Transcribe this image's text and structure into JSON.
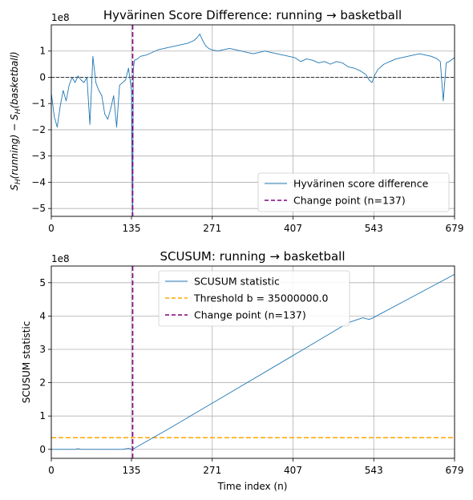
{
  "chart_data": [
    {
      "type": "line",
      "title": "Hyvärinen Score Difference: running → basketball",
      "ylabel": "S_H(running) − S_H(basketball)",
      "xlabel": "",
      "y_multiplier": "1e8",
      "xlim": [
        0,
        679
      ],
      "ylim": [
        -5.3,
        2.0
      ],
      "x_ticks": [
        "0",
        "135",
        "271",
        "407",
        "543",
        "679"
      ],
      "y_ticks": [
        "−5",
        "−4",
        "−3",
        "−2",
        "−1",
        "0",
        "1"
      ],
      "grid": true,
      "legend_position": "lower right",
      "series": [
        {
          "name": "Hyvärinen score difference",
          "color": "#1f77b4",
          "x": [
            0,
            5,
            10,
            15,
            20,
            25,
            30,
            35,
            40,
            45,
            50,
            55,
            60,
            65,
            70,
            75,
            80,
            85,
            90,
            95,
            100,
            105,
            110,
            115,
            120,
            125,
            130,
            135,
            137,
            138,
            140,
            145,
            150,
            160,
            170,
            180,
            190,
            200,
            210,
            220,
            230,
            240,
            245,
            250,
            255,
            260,
            265,
            270,
            280,
            290,
            300,
            310,
            320,
            330,
            340,
            350,
            360,
            370,
            380,
            390,
            400,
            410,
            420,
            430,
            440,
            450,
            460,
            470,
            480,
            490,
            500,
            510,
            520,
            530,
            535,
            540,
            545,
            550,
            560,
            570,
            580,
            590,
            600,
            610,
            620,
            630,
            640,
            650,
            655,
            660,
            665,
            670,
            679
          ],
          "y": [
            -0.6,
            -1.5,
            -1.9,
            -1.1,
            -0.5,
            -0.9,
            -0.3,
            0.0,
            -0.2,
            0.05,
            -0.1,
            -0.2,
            0.0,
            -1.8,
            0.8,
            -0.2,
            -0.5,
            -0.7,
            -1.4,
            -1.6,
            -1.2,
            -0.7,
            -1.9,
            -0.3,
            -0.2,
            -0.1,
            0.35,
            -0.5,
            -5.2,
            0.3,
            0.65,
            0.7,
            0.8,
            0.85,
            0.95,
            1.05,
            1.1,
            1.15,
            1.2,
            1.25,
            1.3,
            1.4,
            1.5,
            1.65,
            1.4,
            1.2,
            1.1,
            1.05,
            1.0,
            1.05,
            1.1,
            1.05,
            1.0,
            0.95,
            0.9,
            0.95,
            1.0,
            0.95,
            0.9,
            0.85,
            0.8,
            0.75,
            0.6,
            0.7,
            0.65,
            0.55,
            0.6,
            0.5,
            0.6,
            0.55,
            0.4,
            0.35,
            0.25,
            0.1,
            -0.1,
            -0.2,
            0.1,
            0.3,
            0.5,
            0.6,
            0.7,
            0.75,
            0.8,
            0.85,
            0.9,
            0.85,
            0.8,
            0.7,
            0.6,
            -0.9,
            0.55,
            0.6,
            0.75
          ]
        }
      ],
      "hlines": [
        {
          "y": 0,
          "color": "#000000",
          "style": "dashed"
        }
      ],
      "vlines": [
        {
          "x": 137,
          "name": "Change point (n=137)",
          "color": "#800080",
          "style": "dashed"
        }
      ]
    },
    {
      "type": "line",
      "title": "SCUSUM: running → basketball",
      "ylabel": "SCUSUM statistic",
      "xlabel": "Time index (n)",
      "y_multiplier": "1e8",
      "xlim": [
        0,
        679
      ],
      "ylim": [
        -0.27,
        5.5
      ],
      "x_ticks": [
        "0",
        "135",
        "271",
        "407",
        "543",
        "679"
      ],
      "y_ticks": [
        "0",
        "1",
        "2",
        "3",
        "4",
        "5"
      ],
      "grid": true,
      "legend_position": "upper center",
      "series": [
        {
          "name": "SCUSUM statistic",
          "color": "#1f77b4",
          "x": [
            0,
            40,
            45,
            50,
            80,
            120,
            130,
            135,
            137,
            200,
            300,
            400,
            500,
            525,
            530,
            535,
            540,
            600,
            679
          ],
          "y": [
            0.0,
            0.0,
            0.02,
            0.0,
            0.0,
            0.0,
            0.03,
            0.0,
            0.0,
            0.64,
            1.69,
            2.74,
            3.8,
            3.95,
            3.92,
            3.9,
            3.93,
            4.5,
            5.25
          ]
        }
      ],
      "hlines": [
        {
          "y": 0.35,
          "name": "Threshold b = 35000000.0",
          "color": "#ffa500",
          "style": "dashed"
        }
      ],
      "vlines": [
        {
          "x": 137,
          "name": "Change point (n=137)",
          "color": "#800080",
          "style": "dashed"
        }
      ]
    }
  ]
}
